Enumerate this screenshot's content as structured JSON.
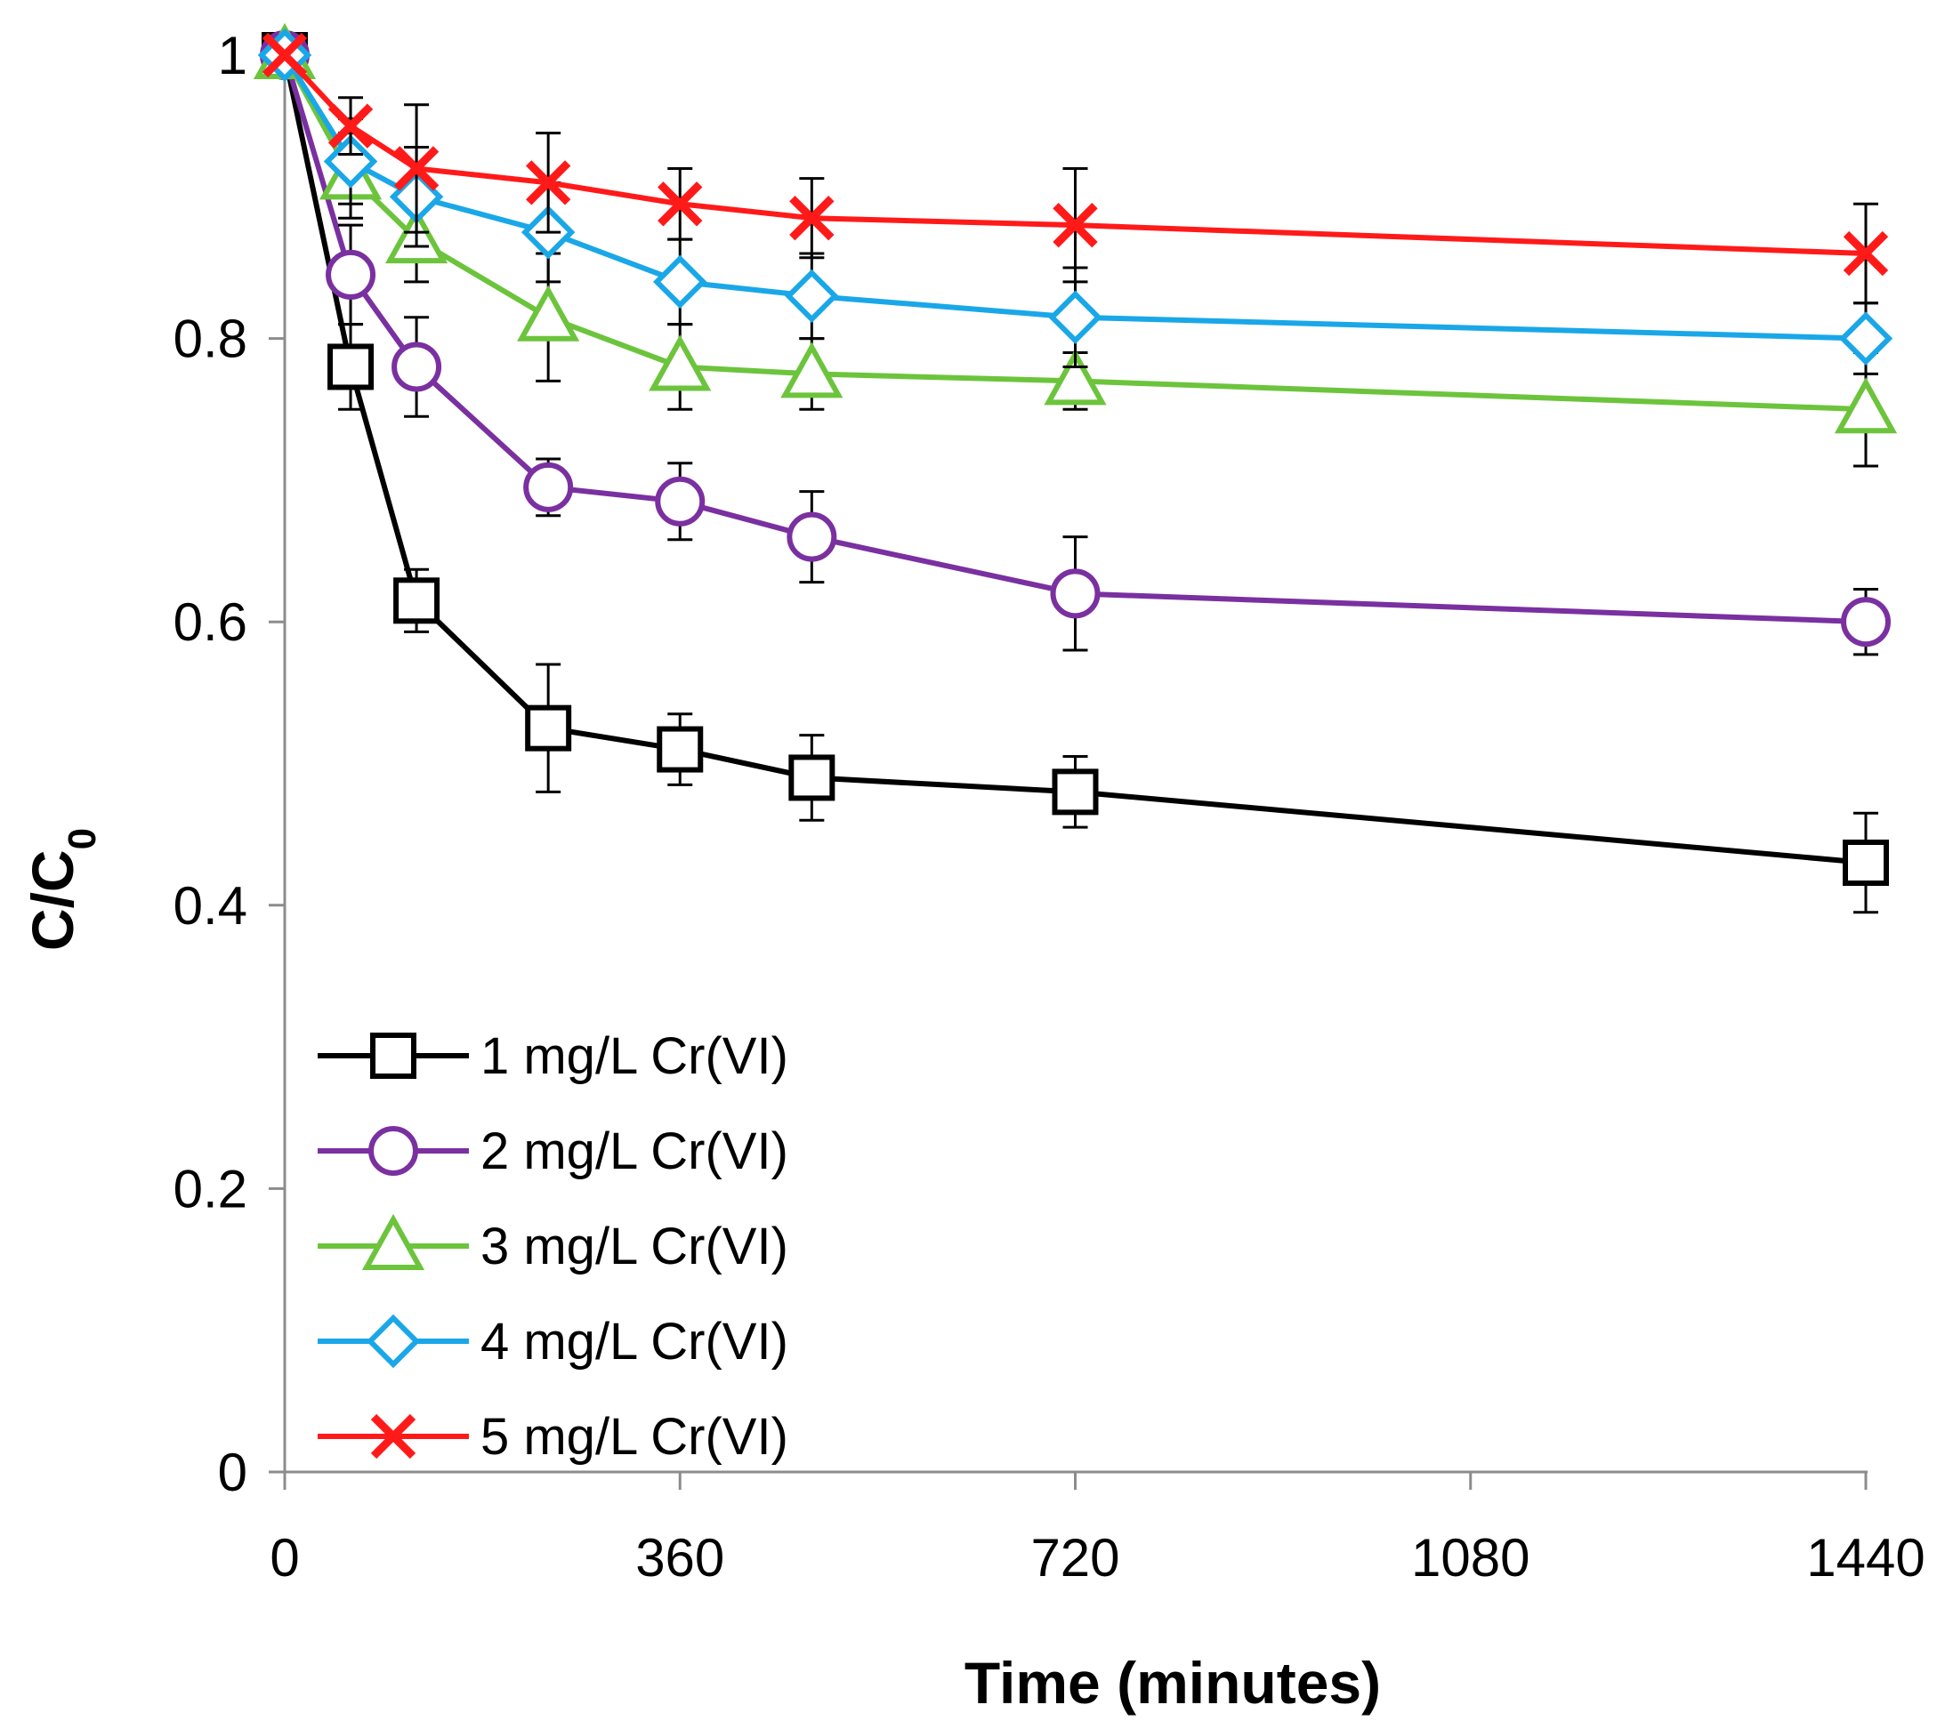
{
  "chart_data": {
    "type": "line",
    "title": "",
    "xlabel": "Time (minutes)",
    "ylabel": "C/C",
    "ylabel_subscript": "0",
    "xlim": [
      0,
      1440
    ],
    "ylim": [
      0,
      1
    ],
    "xticks": [
      0,
      360,
      720,
      1080,
      1440
    ],
    "yticks": [
      0,
      0.2,
      0.4,
      0.6,
      0.8,
      1
    ],
    "xtick_labels": [
      "0",
      "360",
      "720",
      "1080",
      "1440"
    ],
    "ytick_labels": [
      "0",
      "0.2",
      "0.4",
      "0.6",
      "0.8",
      "1"
    ],
    "grid": false,
    "legend_position": "bottom-left",
    "series": [
      {
        "name": "1 mg/L Cr(VI)",
        "color": "#000000",
        "marker": "square",
        "x": [
          0,
          60,
          120,
          240,
          360,
          480,
          720,
          1440
        ],
        "y": [
          1.0,
          0.78,
          0.615,
          0.525,
          0.51,
          0.49,
          0.48,
          0.43
        ],
        "err": [
          0.0,
          0.03,
          0.022,
          0.045,
          0.025,
          0.03,
          0.025,
          0.035
        ]
      },
      {
        "name": "2 mg/L Cr(VI)",
        "color": "#7a30a0",
        "marker": "circle",
        "x": [
          0,
          60,
          120,
          240,
          360,
          480,
          720,
          1440
        ],
        "y": [
          1.0,
          0.845,
          0.78,
          0.695,
          0.685,
          0.66,
          0.62,
          0.6
        ],
        "err": [
          0.0,
          0.035,
          0.035,
          0.02,
          0.027,
          0.032,
          0.04,
          0.023
        ]
      },
      {
        "name": "3 mg/L Cr(VI)",
        "color": "#6cc43c",
        "marker": "triangle",
        "x": [
          0,
          60,
          120,
          240,
          360,
          480,
          720,
          1440
        ],
        "y": [
          1.0,
          0.915,
          0.87,
          0.815,
          0.78,
          0.775,
          0.77,
          0.75
        ],
        "err": [
          0.0,
          0.03,
          0.03,
          0.045,
          0.03,
          0.025,
          0.02,
          0.04
        ]
      },
      {
        "name": "4 mg/L Cr(VI)",
        "color": "#1aa7e8",
        "marker": "diamond",
        "x": [
          0,
          60,
          120,
          240,
          360,
          480,
          720,
          1440
        ],
        "y": [
          1.0,
          0.925,
          0.9,
          0.875,
          0.84,
          0.83,
          0.815,
          0.8
        ],
        "err": [
          0.0,
          0.03,
          0.035,
          0.035,
          0.03,
          0.03,
          0.035,
          0.025
        ]
      },
      {
        "name": "5 mg/L Cr(VI)",
        "color": "#ff1a1a",
        "marker": "x",
        "x": [
          0,
          60,
          120,
          240,
          360,
          480,
          720,
          1440
        ],
        "y": [
          1.0,
          0.95,
          0.92,
          0.91,
          0.895,
          0.885,
          0.88,
          0.86
        ],
        "err": [
          0.0,
          0.02,
          0.045,
          0.035,
          0.025,
          0.028,
          0.04,
          0.035
        ]
      }
    ]
  }
}
